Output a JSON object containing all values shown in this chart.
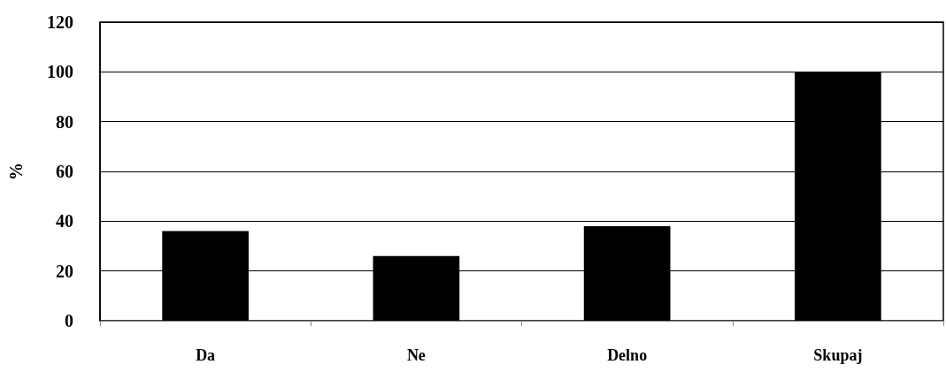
{
  "chart_data": {
    "type": "bar",
    "ylabel": "%",
    "categories": [
      "Da",
      "Ne",
      "Delno",
      "Skupaj"
    ],
    "values": [
      36,
      26,
      38,
      100
    ],
    "color": "#000000",
    "ylim": [
      0,
      120
    ],
    "yticks": [
      0,
      20,
      40,
      60,
      80,
      100,
      120
    ],
    "grid": "y"
  }
}
